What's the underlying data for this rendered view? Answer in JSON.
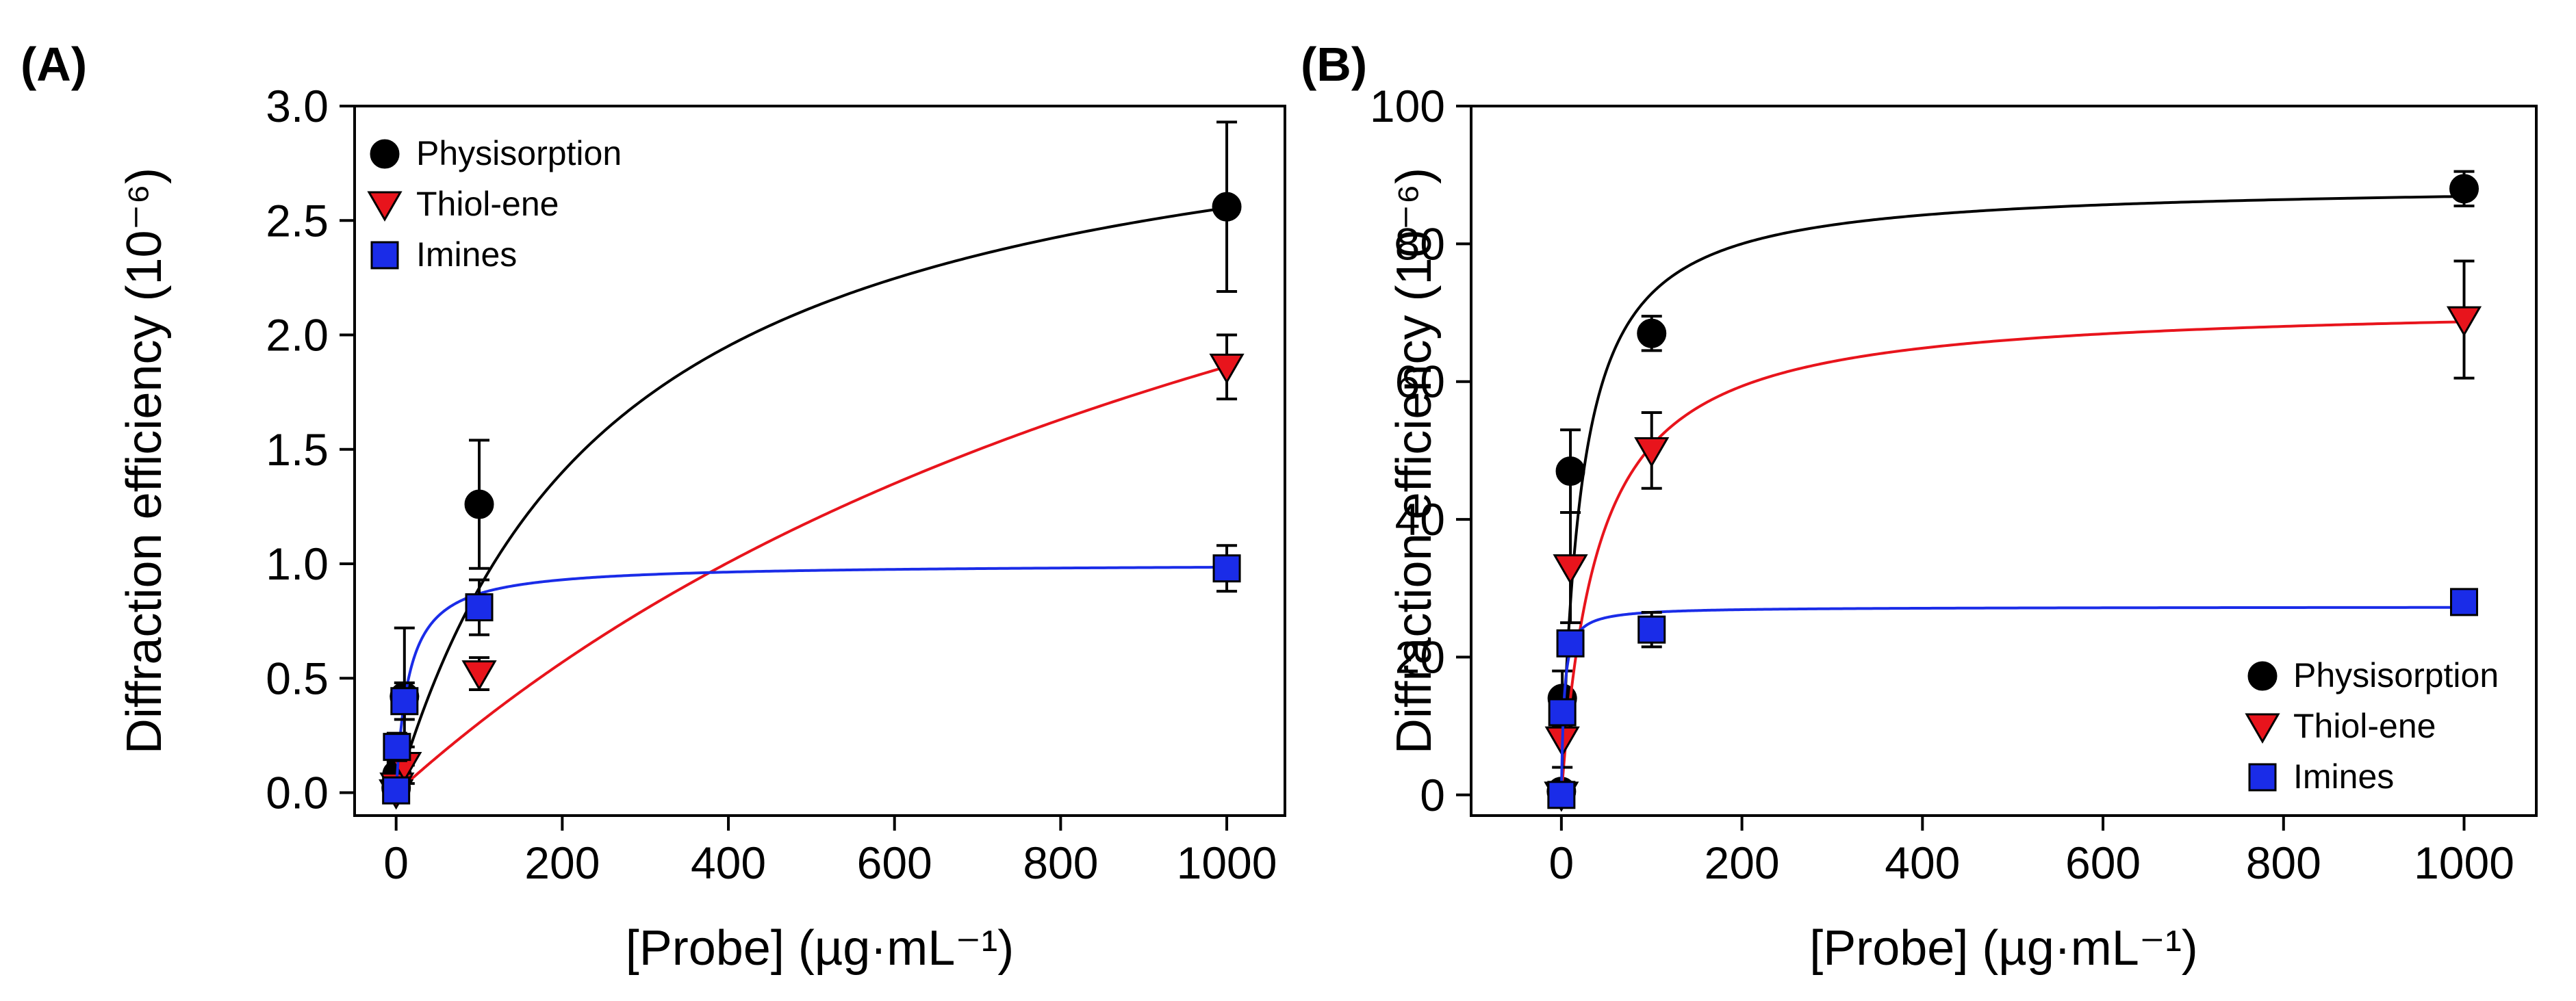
{
  "chart_data": [
    {
      "type": "scatter",
      "panel_label": "(A)",
      "xlabel": "[Probe] (µg·mL⁻¹)",
      "ylabel": "Diffraction efficiency (10⁻⁶)",
      "xlim": [
        -50,
        1070
      ],
      "ylim": [
        -0.1,
        3.0
      ],
      "xticks": [
        0,
        200,
        400,
        600,
        800,
        1000
      ],
      "xtick_labels": [
        "0",
        "200",
        "400",
        "600",
        "800",
        "1000"
      ],
      "yticks": [
        0,
        0.5,
        1.0,
        1.5,
        2.0,
        2.5,
        3.0
      ],
      "ytick_labels": [
        "0.0",
        "0.5",
        "1.0",
        "1.5",
        "2.0",
        "2.5",
        "3.0"
      ],
      "legend_position": "top-left",
      "grid": false,
      "series": [
        {
          "name": "Physisorption",
          "marker": "circle",
          "color": "#000000",
          "x": [
            0,
            1,
            10,
            100,
            1000
          ],
          "y": [
            0.02,
            0.08,
            0.42,
            1.26,
            2.56
          ],
          "err": [
            0.02,
            0.05,
            0.3,
            0.28,
            0.37
          ],
          "fit": {
            "model": "hyperbolic",
            "bmax": 3.22,
            "kd": 260
          }
        },
        {
          "name": "Thiol-ene",
          "marker": "triangle-down",
          "color": "#e8141c",
          "x": [
            0,
            1,
            10,
            100,
            1000
          ],
          "y": [
            0.0,
            0.03,
            0.12,
            0.52,
            1.86
          ],
          "err": [
            0.02,
            0.03,
            0.08,
            0.07,
            0.14
          ],
          "fit": {
            "model": "hyperbolic",
            "bmax": 4.3,
            "kd": 1310
          }
        },
        {
          "name": "Imines",
          "marker": "square",
          "color": "#1a2ce8",
          "x": [
            0,
            1,
            10,
            100,
            1000
          ],
          "y": [
            0.01,
            0.2,
            0.4,
            0.81,
            0.98
          ],
          "err": [
            0.02,
            0.06,
            0.08,
            0.12,
            0.1
          ],
          "fit": {
            "model": "hyperbolic",
            "bmax": 1.0,
            "kd": 15
          }
        }
      ]
    },
    {
      "type": "scatter",
      "panel_label": "(B)",
      "xlabel": "[Probe] (µg·mL⁻¹)",
      "ylabel": "Diffraction efficiency (10⁻⁶)",
      "xlim": [
        -100,
        1080
      ],
      "ylim": [
        -3,
        100
      ],
      "xticks": [
        0,
        200,
        400,
        600,
        800,
        1000
      ],
      "xtick_labels": [
        "0",
        "200",
        "400",
        "600",
        "800",
        "1000"
      ],
      "yticks": [
        0,
        20,
        40,
        60,
        80,
        100
      ],
      "ytick_labels": [
        "0",
        "20",
        "40",
        "60",
        "80",
        "100"
      ],
      "legend_position": "bottom-right",
      "grid": false,
      "series": [
        {
          "name": "Physisorption",
          "marker": "circle",
          "color": "#000000",
          "x": [
            0,
            1,
            10,
            100,
            1000
          ],
          "y": [
            0.5,
            14,
            47,
            67,
            88
          ],
          "err": [
            0.5,
            4,
            6,
            2.5,
            2.5
          ],
          "fit": {
            "model": "hyperbolic",
            "bmax": 88.8,
            "kd": 22
          }
        },
        {
          "name": "Thiol-ene",
          "marker": "triangle-down",
          "color": "#e8141c",
          "x": [
            0,
            1,
            10,
            100,
            1000
          ],
          "y": [
            0,
            8,
            33,
            50,
            69
          ],
          "err": [
            1,
            4,
            8,
            5.5,
            8.5
          ],
          "fit": {
            "model": "hyperbolic",
            "bmax": 71.5,
            "kd": 41
          }
        },
        {
          "name": "Imines",
          "marker": "square",
          "color": "#1a2ce8",
          "x": [
            0,
            1,
            10,
            100,
            1000
          ],
          "y": [
            0,
            12,
            22,
            24,
            28
          ],
          "err": [
            0.5,
            1.5,
            1.5,
            2.5,
            1.0
          ],
          "fit": {
            "model": "hyperbolic",
            "bmax": 27.3,
            "kd": 3
          }
        }
      ]
    }
  ]
}
